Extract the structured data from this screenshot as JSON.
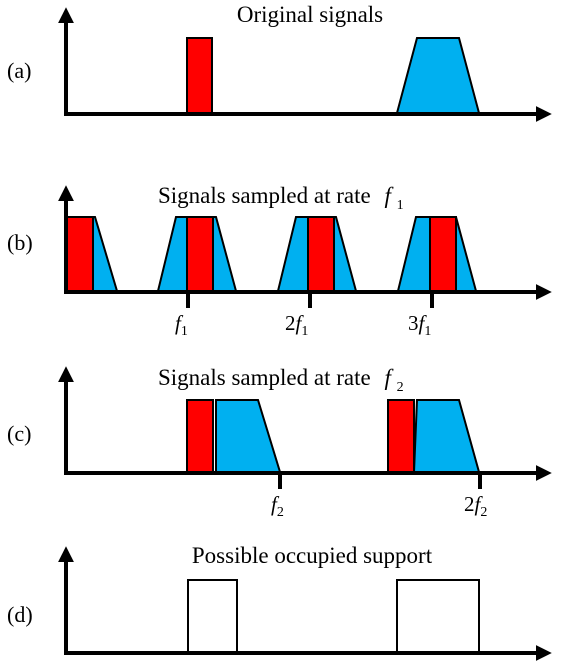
{
  "colors": {
    "red": "#ff0000",
    "blue": "#00b0f0",
    "stroke": "#000000"
  },
  "panels": [
    {
      "id": "a",
      "label": "(a)",
      "title": "Original signals",
      "ticks": []
    },
    {
      "id": "b",
      "label": "(b)",
      "title": "Signals sampled at rate",
      "title_symbol": "f",
      "title_subscript": "1",
      "ticks": [
        {
          "coef": "",
          "sym": "f",
          "sub": "1"
        },
        {
          "coef": "2",
          "sym": "f",
          "sub": "1"
        },
        {
          "coef": "3",
          "sym": "f",
          "sub": "1"
        }
      ]
    },
    {
      "id": "c",
      "label": "(c)",
      "title": "Signals sampled at rate",
      "title_symbol": "f",
      "title_subscript": "2",
      "ticks": [
        {
          "coef": "",
          "sym": "f",
          "sub": "2"
        },
        {
          "coef": "2",
          "sym": "f",
          "sub": "2"
        }
      ]
    },
    {
      "id": "d",
      "label": "(d)",
      "title": "Possible occupied support",
      "ticks": []
    }
  ]
}
